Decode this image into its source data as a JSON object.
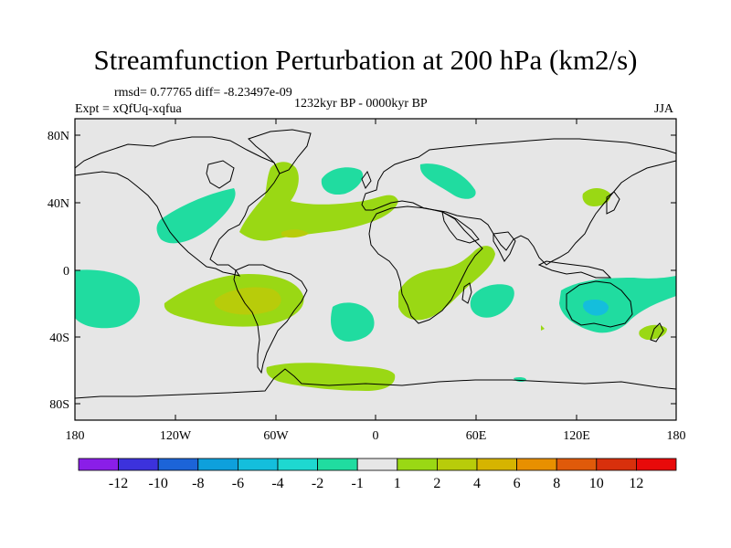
{
  "title": "Streamfunction Perturbation at 200 hPa (km2/s)",
  "rmsd_text": "rmsd= 0.77765 diff= -8.23497e-09",
  "period_text": "1232kyr BP - 0000kyr BP",
  "expt_text": "Expt = xQfUq-xqfua",
  "season": "JJA",
  "lat_ticks": [
    "80N",
    "40N",
    "0",
    "40S",
    "80S"
  ],
  "lon_ticks": [
    "180",
    "120W",
    "60W",
    "0",
    "60E",
    "120E",
    "180"
  ],
  "colorbar": {
    "labels": [
      "-12",
      "-10",
      "-8",
      "-6",
      "-4",
      "-2",
      "-1",
      "1",
      "2",
      "4",
      "6",
      "8",
      "10",
      "12"
    ],
    "colors": [
      "#8a1ee8",
      "#3c32dc",
      "#1c64d8",
      "#0ea0dc",
      "#14bedc",
      "#1ed8d0",
      "#20dca0",
      "#e6e6e6",
      "#9ad814",
      "#b8cc0a",
      "#d6b400",
      "#e89000",
      "#e05a0a",
      "#d8300c",
      "#e80a0a"
    ]
  },
  "colors": {
    "background": "#e6e6e6",
    "coast": "#000000"
  }
}
